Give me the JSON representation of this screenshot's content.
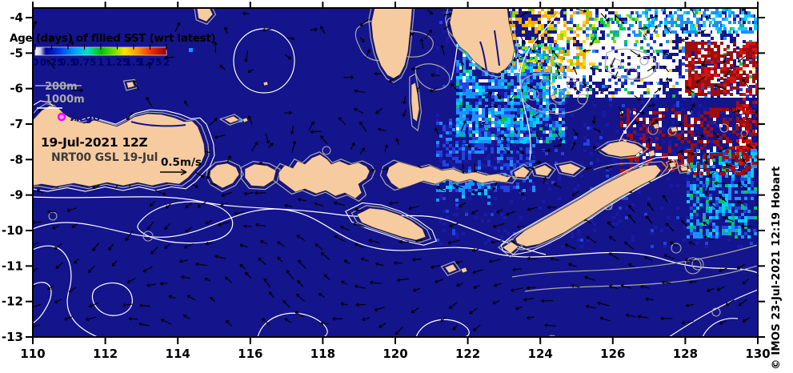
{
  "figure": {
    "title": "Age (days) of filled SST (wrt latest)",
    "datetime_label": "19-Jul-2021 12Z",
    "model_label": "NRT00 GSL 19-Jul",
    "vector_scale_label": "0.5m/s",
    "argo_label": "Argo",
    "credit": "© IMOS 23-Jul-2021 12:19 Hobart"
  },
  "colorbar": {
    "tick_labels": [
      "0",
      "0.25",
      "0.5",
      "0.75",
      "1",
      "1.25",
      "1.5",
      "1.75",
      "2"
    ],
    "gradient_stops": [
      [
        0,
        "#FFFFFF"
      ],
      [
        0.04,
        "#C8C8F0"
      ],
      [
        0.08,
        "#000090"
      ],
      [
        0.18,
        "#0038E8"
      ],
      [
        0.3,
        "#00A0FF"
      ],
      [
        0.4,
        "#00E0C8"
      ],
      [
        0.5,
        "#00C000"
      ],
      [
        0.6,
        "#70E000"
      ],
      [
        0.68,
        "#FFE000"
      ],
      [
        0.78,
        "#FF9800"
      ],
      [
        0.88,
        "#F03000"
      ],
      [
        1,
        "#980000"
      ]
    ]
  },
  "legend": {
    "contour_200m_label": "200m",
    "contour_1000m_label": "1000m"
  },
  "axes": {
    "x_tick_labels": [
      "110",
      "112",
      "114",
      "116",
      "118",
      "120",
      "122",
      "124",
      "126",
      "128",
      "130"
    ],
    "y_tick_labels": [
      "-4",
      "-5",
      "-6",
      "-7",
      "-8",
      "-9",
      "-10",
      "-11",
      "-12",
      "-13"
    ],
    "x_range": [
      110,
      130
    ],
    "y_range": [
      -13,
      -4
    ]
  },
  "colors": {
    "ocean": "#14148C",
    "land": "#F7CBA0",
    "contour_200m": "#A8A8A8",
    "contour_1000m": "#FFFFFF",
    "arrow": "#000000",
    "argo_marker": "#FF00FF",
    "argo_marker_fill": "#FF9CFF",
    "axis": "#000000",
    "colorbar_number": "#000070",
    "legend_text": "#ABABAB",
    "model_text": "#3C3C3C",
    "palette": {
      "white": "#FFFFFF",
      "navy": "#1A1AA8",
      "royal": "#2244DD",
      "dodger": "#1E8FFF",
      "cyan": "#00CFFF",
      "green": "#00C855",
      "lime": "#7FE000",
      "yellow": "#FFD700",
      "orange": "#FFA800",
      "red": "#D41414",
      "darkred": "#9E0E0E"
    }
  }
}
